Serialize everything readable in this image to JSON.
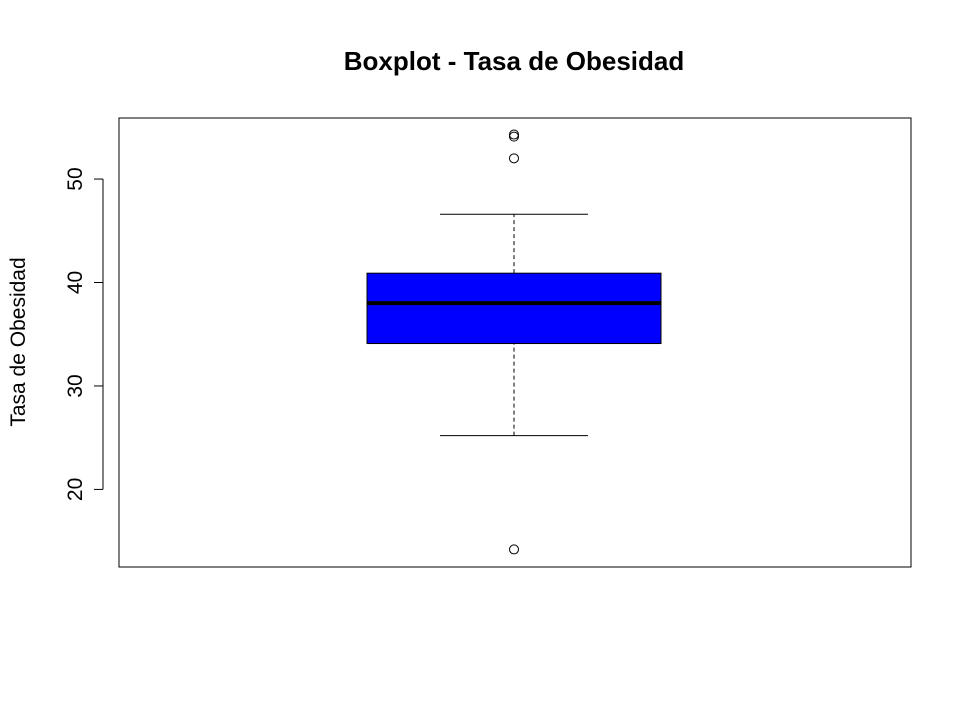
{
  "chart_data": {
    "type": "boxplot",
    "title": "Boxplot - Tasa de Obesidad",
    "xlabel": "",
    "ylabel": "Tasa de Obesidad",
    "ylim": [
      12.5,
      55.9
    ],
    "yticks": [
      20,
      30,
      40,
      50
    ],
    "grid": false,
    "box": {
      "q1": 34.1,
      "median": 38.0,
      "q3": 40.9,
      "whisker_low": 25.2,
      "whisker_high": 46.6
    },
    "outliers": [
      54.3,
      54.1,
      52.0,
      14.2
    ],
    "colors": {
      "box_fill": "#0000ff",
      "stroke": "#000000"
    }
  }
}
